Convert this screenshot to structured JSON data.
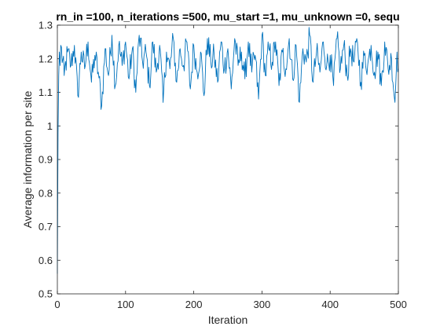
{
  "chart_data": {
    "type": "line",
    "title": "rn_in =100, n_iterations =500, mu_start =1, mu_unknown =0, sequ",
    "xlabel": "Iteration",
    "ylabel": "Average information per site",
    "xlim": [
      0,
      500
    ],
    "ylim": [
      0.5,
      1.3
    ],
    "x_ticks": [
      0,
      100,
      200,
      300,
      400,
      500
    ],
    "y_ticks": [
      0.5,
      0.6,
      0.7,
      0.8,
      0.9,
      1,
      1.1,
      1.2,
      1.3
    ],
    "x_tick_labels": [
      "0",
      "100",
      "200",
      "300",
      "400",
      "500"
    ],
    "y_tick_labels": [
      "0.5",
      "0.6",
      "0.7",
      "0.8",
      "0.9",
      "1",
      "1.1",
      "1.2",
      "1.3"
    ],
    "grid": false,
    "legend": "none",
    "series": [
      {
        "color": "#0072BD",
        "x_step": 5,
        "x": [
          0,
          1,
          2,
          3,
          4,
          5,
          10,
          15,
          20,
          25,
          30,
          35,
          40,
          45,
          50,
          55,
          60,
          65,
          70,
          75,
          80,
          85,
          90,
          95,
          100,
          105,
          110,
          115,
          120,
          125,
          130,
          135,
          140,
          145,
          150,
          155,
          160,
          165,
          170,
          175,
          180,
          185,
          190,
          195,
          200,
          205,
          210,
          215,
          220,
          225,
          230,
          235,
          240,
          245,
          250,
          255,
          260,
          265,
          270,
          275,
          280,
          285,
          290,
          295,
          300,
          305,
          310,
          315,
          320,
          325,
          330,
          335,
          340,
          345,
          350,
          355,
          360,
          365,
          370,
          375,
          380,
          385,
          390,
          395,
          400,
          405,
          410,
          415,
          420,
          425,
          430,
          435,
          440,
          445,
          450,
          455,
          460,
          465,
          470,
          475,
          480,
          485,
          490,
          495,
          498,
          500
        ],
        "y": [
          0.56,
          0.98,
          1.15,
          1.22,
          1.18,
          1.24,
          1.15,
          1.22,
          1.18,
          1.24,
          1.09,
          1.22,
          1.17,
          1.25,
          1.13,
          1.21,
          1.16,
          1.06,
          1.23,
          1.15,
          1.27,
          1.12,
          1.24,
          1.18,
          1.25,
          1.14,
          1.23,
          1.1,
          1.27,
          1.19,
          1.22,
          1.12,
          1.25,
          1.16,
          1.24,
          1.07,
          1.22,
          1.17,
          1.26,
          1.13,
          1.23,
          1.18,
          1.25,
          1.11,
          1.24,
          1.16,
          1.22,
          1.09,
          1.26,
          1.19,
          1.21,
          1.13,
          1.25,
          1.17,
          1.23,
          1.11,
          1.26,
          1.18,
          1.22,
          1.14,
          1.25,
          1.16,
          1.21,
          1.08,
          1.27,
          1.15,
          1.23,
          1.19,
          1.25,
          1.12,
          1.22,
          1.17,
          1.26,
          1.14,
          1.24,
          1.07,
          1.23,
          1.19,
          1.27,
          1.13,
          1.22,
          1.16,
          1.25,
          1.18,
          1.21,
          1.12,
          1.26,
          1.17,
          1.24,
          1.15,
          1.23,
          1.19,
          1.25,
          1.13,
          1.21,
          1.18,
          1.24,
          1.16,
          1.22,
          1.12,
          1.25,
          1.17,
          1.2,
          1.07,
          1.22,
          1.17
        ]
      }
    ]
  }
}
